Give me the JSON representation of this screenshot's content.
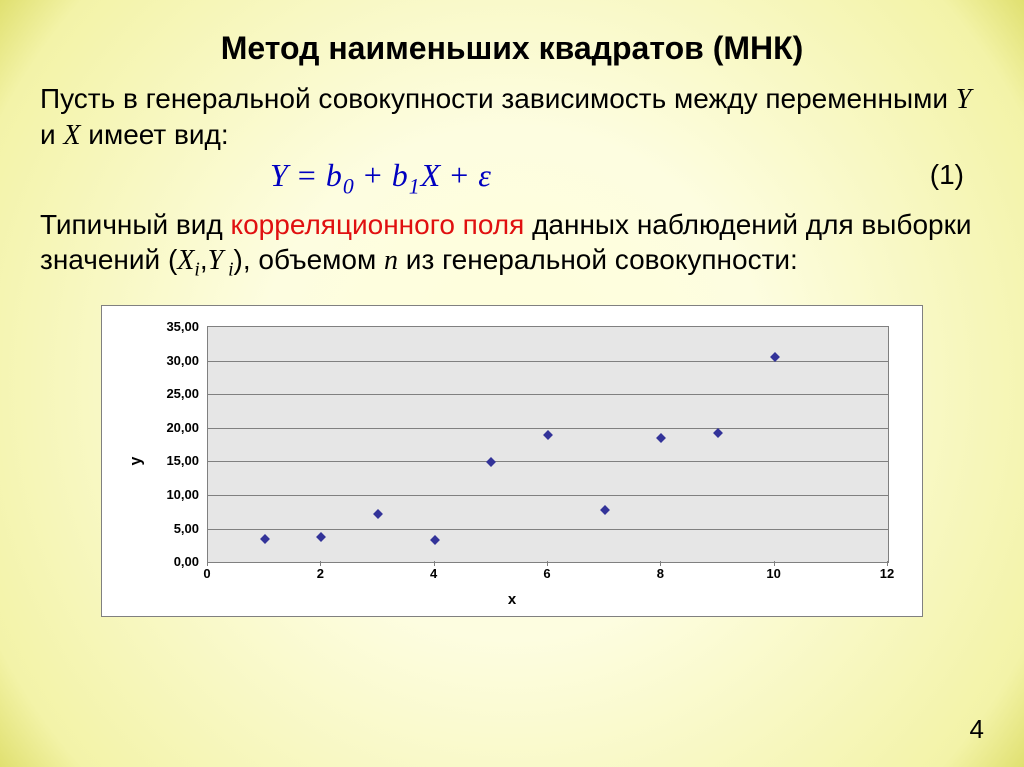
{
  "title": "Метод наименьших квадратов (МНК)",
  "para1_a": "Пусть в генеральной совокупности зависимость между переменными ",
  "para1_y": "Y",
  "para1_mid": "  и ",
  "para1_x": "X",
  "para1_b": "  имеет вид:",
  "equation": {
    "Y": "Y",
    "eq": " = ",
    "b0_b": "b",
    "b0_0": "0",
    "plus1": " + ",
    "b1_b": "b",
    "b1_1": "1",
    "X": "X",
    "plus2": " + ",
    "eps": "ε",
    "num": "(1)"
  },
  "para2_a": "Типичный вид ",
  "para2_red": "корреляционного поля",
  "para2_b": " данных наблюдений для выборки значений (",
  "para2_xi_X": "X",
  "para2_xi_i": "i",
  "para2_comma": ",",
  "para2_yi_Y": "Y",
  "para2_yi_i": " i",
  "para2_c": "), объемом ",
  "para2_n": "n",
  "para2_d": " из генеральной совокупности:",
  "chart": {
    "type": "scatter",
    "xlabel": "x",
    "ylabel": "y",
    "xlim": [
      0,
      12
    ],
    "ylim": [
      0,
      35
    ],
    "xticks": [
      0,
      2,
      4,
      6,
      8,
      10,
      12
    ],
    "yticks": [
      0,
      5,
      10,
      15,
      20,
      25,
      30,
      35
    ],
    "ytick_labels": [
      "0,00",
      "5,00",
      "10,00",
      "15,00",
      "20,00",
      "25,00",
      "30,00",
      "35,00"
    ],
    "points": [
      {
        "x": 1,
        "y": 3.5
      },
      {
        "x": 2,
        "y": 3.7
      },
      {
        "x": 3,
        "y": 7.2
      },
      {
        "x": 4,
        "y": 3.3
      },
      {
        "x": 5,
        "y": 14.9
      },
      {
        "x": 6,
        "y": 19.0
      },
      {
        "x": 7,
        "y": 7.7
      },
      {
        "x": 8,
        "y": 18.5
      },
      {
        "x": 9,
        "y": 19.2
      },
      {
        "x": 10,
        "y": 30.5
      }
    ],
    "marker_color": "#333399",
    "plot_bg": "#e6e6e6",
    "grid_color": "#808080",
    "chart_bg": "#ffffff",
    "tick_fontsize": 13,
    "label_fontsize": 15
  },
  "page_number": "4",
  "background_gradient": {
    "inner": "#ffffdb",
    "outer": "#e0e070"
  }
}
